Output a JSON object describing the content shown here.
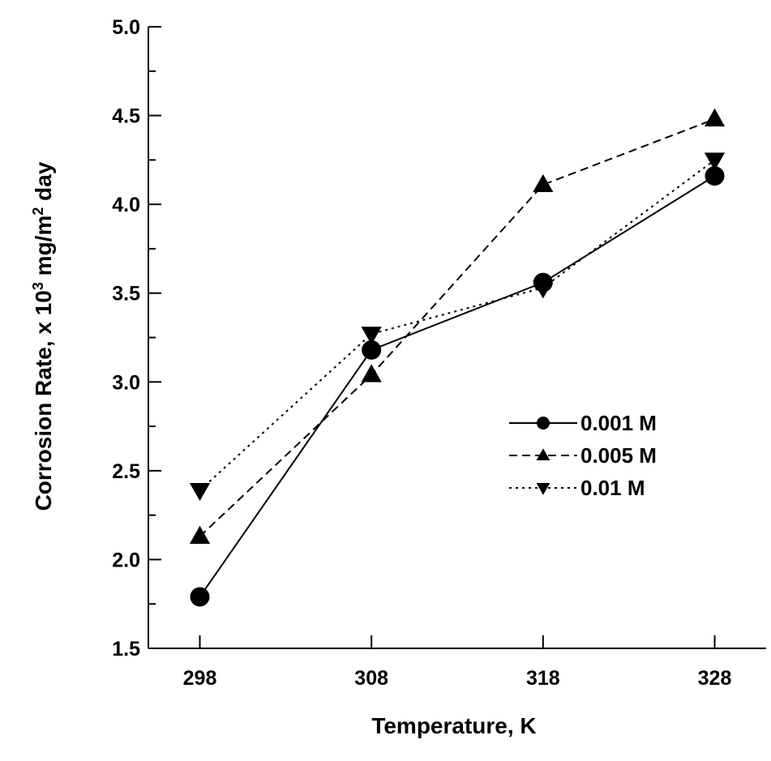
{
  "chart_data": {
    "type": "line",
    "title": "",
    "xlabel": "Temperature, K",
    "ylabel": {
      "prefix": "Corrosion Rate, x 10",
      "sup1": "3",
      "mid": " mg/m",
      "sup2": "2",
      "suffix": " day"
    },
    "x": [
      298,
      308,
      318,
      328
    ],
    "x_tick_labels": [
      "298",
      "308",
      "318",
      "328"
    ],
    "xlim": [
      295,
      331
    ],
    "ylim": [
      1.5,
      5.0
    ],
    "y_ticks": [
      1.5,
      2.0,
      2.5,
      3.0,
      3.5,
      4.0,
      4.5,
      5.0
    ],
    "y_tick_labels": [
      "1.5",
      "2.0",
      "2.5",
      "3.0",
      "3.5",
      "4.0",
      "4.5",
      "5.0"
    ],
    "grid": false,
    "legend_position": "right-middle",
    "series": [
      {
        "name": "0.001 M",
        "values": [
          1.79,
          3.18,
          3.56,
          4.16
        ],
        "marker": "circle",
        "line": "solid"
      },
      {
        "name": "0.005 M",
        "values": [
          2.13,
          3.04,
          4.11,
          4.48
        ],
        "marker": "triangle-up",
        "line": "dashed"
      },
      {
        "name": "0.01 M",
        "values": [
          2.39,
          3.27,
          3.53,
          4.25
        ],
        "marker": "triangle-down",
        "line": "dotted"
      }
    ]
  }
}
